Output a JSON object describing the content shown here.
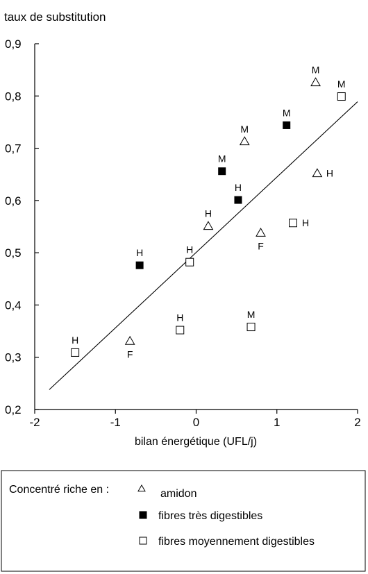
{
  "chart_data": {
    "type": "scatter",
    "title": "",
    "ylabel": "taux de substitution",
    "xlabel": "bilan énergétique (UFL/j)",
    "xlim": [
      -2,
      2
    ],
    "ylim": [
      0.2,
      0.9
    ],
    "x_ticks": [
      -2,
      -1,
      0,
      1,
      2
    ],
    "x_tick_labels": [
      "-2",
      "-1",
      "0",
      "1",
      "2"
    ],
    "y_ticks": [
      0.2,
      0.3,
      0.4,
      0.5,
      0.6,
      0.7,
      0.8,
      0.9
    ],
    "y_tick_labels": [
      "0,2",
      "0,3",
      "0,4",
      "0,5",
      "0,6",
      "0,7",
      "0,8",
      "0,9"
    ],
    "grid": false,
    "legend": {
      "placement": "bottom",
      "prefix": "Concentré riche en :",
      "entries": [
        {
          "marker": "triangle-open",
          "label": "amidon"
        },
        {
          "marker": "square-filled",
          "label": "fibres très digestibles"
        },
        {
          "marker": "square-open",
          "label": "fibres moyennement digestibles"
        }
      ]
    },
    "series": [
      {
        "marker": "triangle-open",
        "points": [
          {
            "x": 1.48,
            "y": 0.826,
            "label": "M",
            "label_pos": "above"
          },
          {
            "x": 0.6,
            "y": 0.713,
            "label": "M",
            "label_pos": "above"
          },
          {
            "x": 1.5,
            "y": 0.652,
            "label": "H",
            "label_pos": "right"
          },
          {
            "x": 0.15,
            "y": 0.551,
            "label": "H",
            "label_pos": "above"
          },
          {
            "x": 0.8,
            "y": 0.538,
            "label": "F",
            "label_pos": "below"
          },
          {
            "x": -0.82,
            "y": 0.331,
            "label": "F",
            "label_pos": "below"
          }
        ]
      },
      {
        "marker": "square-filled",
        "points": [
          {
            "x": 1.12,
            "y": 0.744,
            "label": "M",
            "label_pos": "above"
          },
          {
            "x": 0.32,
            "y": 0.656,
            "label": "M",
            "label_pos": "above"
          },
          {
            "x": 0.52,
            "y": 0.601,
            "label": "H",
            "label_pos": "above"
          },
          {
            "x": -0.7,
            "y": 0.476,
            "label": "H",
            "label_pos": "above"
          }
        ]
      },
      {
        "marker": "square-open",
        "points": [
          {
            "x": 1.8,
            "y": 0.799,
            "label": "M",
            "label_pos": "above"
          },
          {
            "x": 1.2,
            "y": 0.557,
            "label": "H",
            "label_pos": "right"
          },
          {
            "x": -0.08,
            "y": 0.482,
            "label": "H",
            "label_pos": "above"
          },
          {
            "x": -0.2,
            "y": 0.352,
            "label": "H",
            "label_pos": "above"
          },
          {
            "x": 0.68,
            "y": 0.358,
            "label": "M",
            "label_pos": "above"
          },
          {
            "x": -1.5,
            "y": 0.309,
            "label": "H",
            "label_pos": "above"
          }
        ]
      }
    ],
    "regression_line": {
      "x": [
        -1.82,
        2.0
      ],
      "y": [
        0.238,
        0.789
      ]
    }
  }
}
